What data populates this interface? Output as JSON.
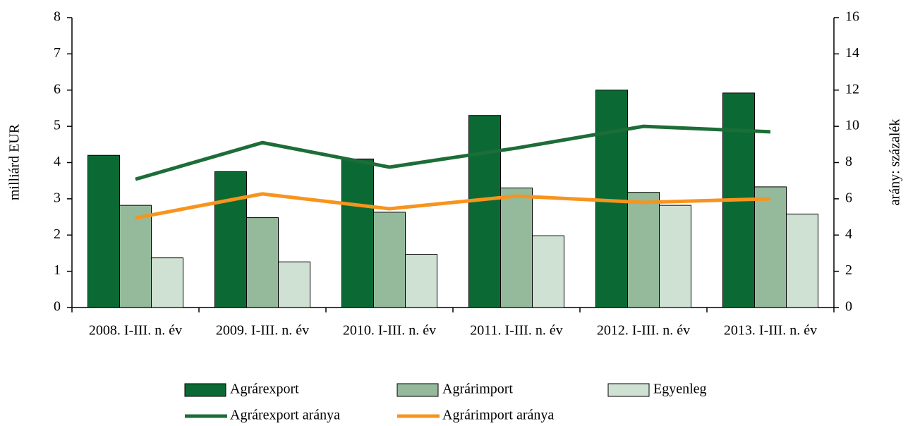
{
  "chart_data": {
    "type": "bar",
    "categories": [
      "2008. I-III. n. év",
      "2009. I-III. n. év",
      "2010. I-III. n. év",
      "2011. I-III. n. év",
      "2012. I-III. n. év",
      "2013. I-III. n. év"
    ],
    "ylabel": "milliárd EUR",
    "y2label": "arány: százalék",
    "ylim": [
      0,
      8
    ],
    "yticks": [
      0,
      1,
      2,
      3,
      4,
      5,
      6,
      7,
      8
    ],
    "y2lim": [
      0,
      16
    ],
    "y2ticks": [
      0,
      2,
      4,
      6,
      8,
      10,
      12,
      14,
      16
    ],
    "grid": false,
    "legend": "bottom",
    "series": [
      {
        "name": "Agrárexport",
        "type": "bar",
        "color": "#0b6a34",
        "values": [
          4.2,
          3.75,
          4.1,
          5.3,
          6.0,
          5.92
        ]
      },
      {
        "name": "Agrárimport",
        "type": "bar",
        "color": "#94ba9b",
        "values": [
          2.82,
          2.48,
          2.63,
          3.3,
          3.18,
          3.33
        ]
      },
      {
        "name": "Egyenleg",
        "type": "bar",
        "color": "#cfe1d3",
        "values": [
          1.37,
          1.26,
          1.47,
          1.98,
          2.82,
          2.58
        ]
      },
      {
        "name": "Agrárexport aránya",
        "type": "line",
        "axis": "y2",
        "color": "#1d6d39",
        "values": [
          7.08,
          9.1,
          7.75,
          8.8,
          10.0,
          9.7
        ]
      },
      {
        "name": "Agrárimport aránya",
        "type": "line",
        "axis": "y2",
        "color": "#f7941d",
        "values": [
          4.94,
          6.27,
          5.45,
          6.15,
          5.8,
          6.0
        ]
      }
    ]
  }
}
